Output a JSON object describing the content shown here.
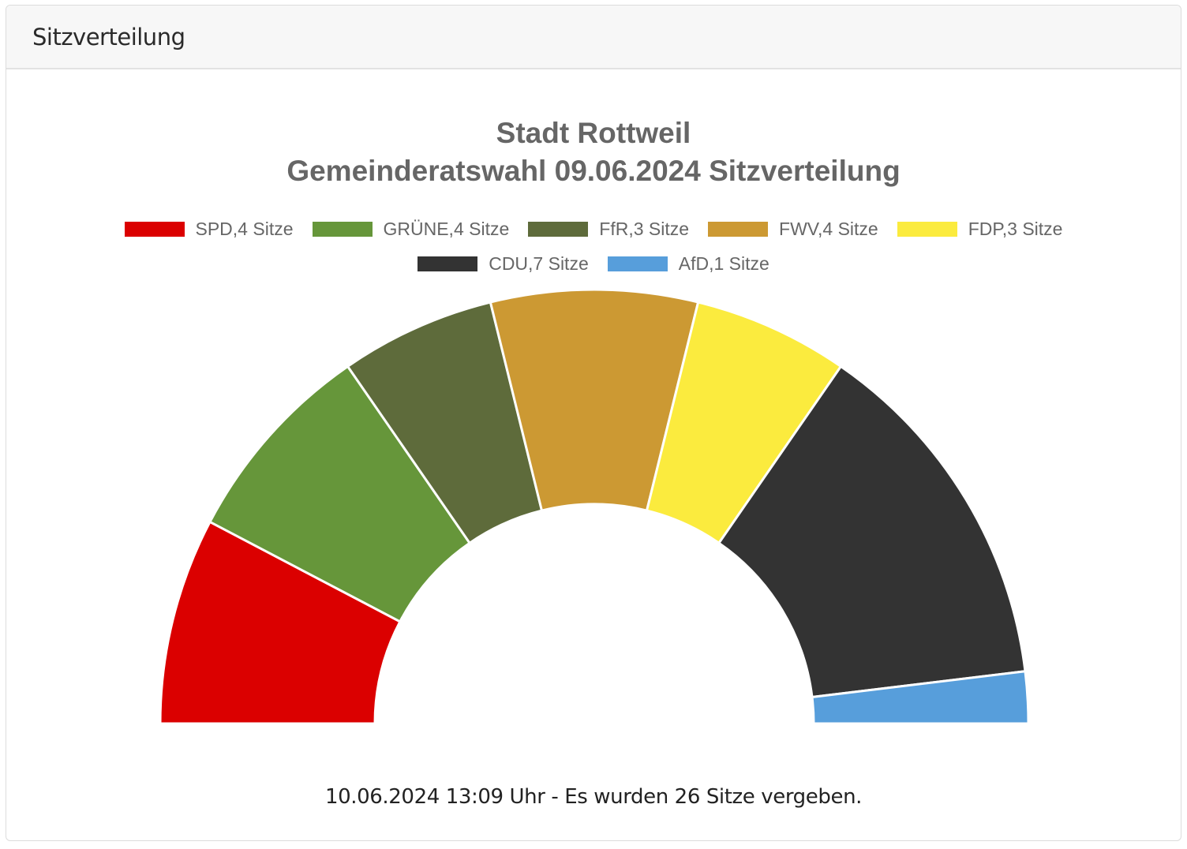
{
  "panel": {
    "header_title": "Sitzverteilung"
  },
  "chart": {
    "title_line1": "Stadt Rottweil",
    "title_line2": "Gemeinderatswahl 09.06.2024 Sitzverteilung"
  },
  "legend": {
    "row1": [
      {
        "label": "SPD,4 Sitze",
        "color": "#db0000"
      },
      {
        "label": "GRÜNE,4 Sitze",
        "color": "#66963a"
      },
      {
        "label": "FfR,3 Sitze",
        "color": "#5e6b3b"
      },
      {
        "label": "FWV,4 Sitze",
        "color": "#cc9933"
      },
      {
        "label": "FDP,3 Sitze",
        "color": "#fbeb3e"
      }
    ],
    "row2": [
      {
        "label": "CDU,7 Sitze",
        "color": "#333333"
      },
      {
        "label": "AfD,1 Sitze",
        "color": "#579edb"
      }
    ]
  },
  "footer": {
    "text": "10.06.2024 13:09 Uhr - Es wurden 26 Sitze vergeben."
  },
  "chart_data": {
    "type": "pie",
    "subtype": "half-donut (parliament seat distribution)",
    "title": "Stadt Rottweil – Gemeinderatswahl 09.06.2024 Sitzverteilung",
    "categories": [
      "SPD",
      "GRÜNE",
      "FfR",
      "FWV",
      "FDP",
      "CDU",
      "AfD"
    ],
    "values": [
      4,
      4,
      3,
      4,
      3,
      7,
      1
    ],
    "colors": [
      "#db0000",
      "#66963a",
      "#5e6b3b",
      "#cc9933",
      "#fbeb3e",
      "#333333",
      "#579edb"
    ],
    "legend_labels": [
      "SPD,4 Sitze",
      "GRÜNE,4 Sitze",
      "FfR,3 Sitze",
      "FWV,4 Sitze",
      "FDP,3 Sitze",
      "CDU,7 Sitze",
      "AfD,1 Sitze"
    ],
    "total_seats": 26,
    "legend_position": "top",
    "caption": "10.06.2024 13:09 Uhr - Es wurden 26 Sitze vergeben."
  }
}
